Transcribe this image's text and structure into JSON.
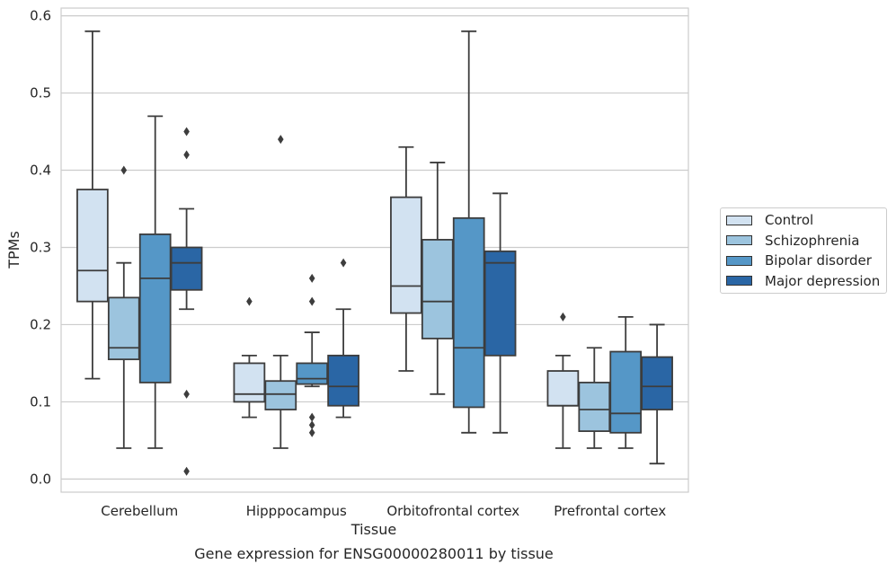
{
  "chart_data": {
    "type": "box",
    "caption": "Gene expression for ENSG00000280011 by tissue",
    "xlabel": "Tissue",
    "ylabel": "TPMs",
    "ylim": [
      -0.017,
      0.61
    ],
    "yticks": [
      0.0,
      0.1,
      0.2,
      0.3,
      0.4,
      0.5,
      0.6
    ],
    "ytick_labels": [
      "0.0",
      "0.1",
      "0.2",
      "0.3",
      "0.4",
      "0.5",
      "0.6"
    ],
    "grid": true,
    "legend_position": "right",
    "categories": [
      "Cerebellum",
      "Hipppocampus",
      "Orbitofrontal cortex",
      "Prefrontal cortex"
    ],
    "series": [
      {
        "name": "Control",
        "color": "#d2e2f1",
        "boxes": [
          {
            "min": 0.13,
            "q1": 0.23,
            "median": 0.27,
            "q3": 0.375,
            "max": 0.58,
            "outliers": []
          },
          {
            "min": 0.08,
            "q1": 0.1,
            "median": 0.11,
            "q3": 0.15,
            "max": 0.16,
            "outliers": [
              0.23
            ]
          },
          {
            "min": 0.14,
            "q1": 0.215,
            "median": 0.25,
            "q3": 0.365,
            "max": 0.43,
            "outliers": []
          },
          {
            "min": 0.04,
            "q1": 0.095,
            "median": 0.095,
            "q3": 0.14,
            "max": 0.16,
            "outliers": [
              0.21
            ]
          }
        ]
      },
      {
        "name": "Schizophrenia",
        "color": "#9cc4de",
        "boxes": [
          {
            "min": 0.04,
            "q1": 0.155,
            "median": 0.17,
            "q3": 0.235,
            "max": 0.28,
            "outliers": [
              0.4
            ]
          },
          {
            "min": 0.04,
            "q1": 0.09,
            "median": 0.11,
            "q3": 0.127,
            "max": 0.16,
            "outliers": [
              0.44
            ]
          },
          {
            "min": 0.11,
            "q1": 0.182,
            "median": 0.23,
            "q3": 0.31,
            "max": 0.41,
            "outliers": []
          },
          {
            "min": 0.04,
            "q1": 0.062,
            "median": 0.09,
            "q3": 0.125,
            "max": 0.17,
            "outliers": []
          }
        ]
      },
      {
        "name": "Bipolar disorder",
        "color": "#5597c7",
        "boxes": [
          {
            "min": 0.04,
            "q1": 0.125,
            "median": 0.26,
            "q3": 0.317,
            "max": 0.47,
            "outliers": []
          },
          {
            "min": 0.12,
            "q1": 0.123,
            "median": 0.13,
            "q3": 0.15,
            "max": 0.19,
            "outliers": [
              0.26,
              0.23,
              0.08,
              0.07,
              0.06
            ]
          },
          {
            "min": 0.06,
            "q1": 0.093,
            "median": 0.17,
            "q3": 0.338,
            "max": 0.58,
            "outliers": []
          },
          {
            "min": 0.04,
            "q1": 0.06,
            "median": 0.085,
            "q3": 0.165,
            "max": 0.21,
            "outliers": []
          }
        ]
      },
      {
        "name": "Major depression",
        "color": "#2a66a5",
        "boxes": [
          {
            "min": 0.22,
            "q1": 0.245,
            "median": 0.28,
            "q3": 0.3,
            "max": 0.35,
            "outliers": [
              0.45,
              0.42,
              0.11,
              0.01
            ]
          },
          {
            "min": 0.08,
            "q1": 0.095,
            "median": 0.12,
            "q3": 0.16,
            "max": 0.22,
            "outliers": [
              0.28
            ]
          },
          {
            "min": 0.06,
            "q1": 0.16,
            "median": 0.28,
            "q3": 0.295,
            "max": 0.37,
            "outliers": []
          },
          {
            "min": 0.02,
            "q1": 0.09,
            "median": 0.12,
            "q3": 0.158,
            "max": 0.2,
            "outliers": []
          }
        ]
      }
    ]
  }
}
